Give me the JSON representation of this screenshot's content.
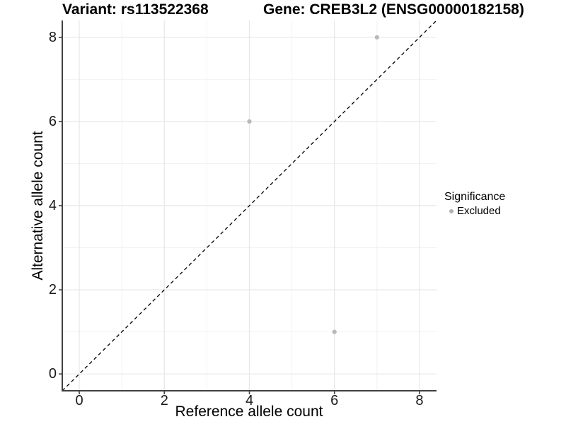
{
  "chart_data": {
    "type": "scatter",
    "title_left": "Variant: rs113522368",
    "title_right": "Gene: CREB3L2 (ENSG00000182158)",
    "xlabel": "Reference allele count",
    "ylabel": "Alternative allele count",
    "xlim": [
      -0.4,
      8.4
    ],
    "ylim": [
      -0.4,
      8.4
    ],
    "x_ticks": [
      0,
      2,
      4,
      6,
      8
    ],
    "y_ticks": [
      0,
      2,
      4,
      6,
      8
    ],
    "x_minor_grid": [
      1,
      3,
      5,
      7
    ],
    "y_minor_grid": [
      1,
      3,
      5,
      7
    ],
    "grid": true,
    "legend_position": "right",
    "identity_line": {
      "from_xy": [
        -0.4,
        -0.4
      ],
      "to_xy": [
        8.4,
        8.4
      ],
      "style": "dashed",
      "color": "#000000"
    },
    "series": [
      {
        "name": "Excluded",
        "color": "#b8b8b8",
        "points": [
          [
            7,
            8
          ],
          [
            4,
            6
          ],
          [
            6,
            1
          ]
        ]
      }
    ],
    "legend": {
      "title": "Significance",
      "entries": [
        {
          "label": "Excluded",
          "color": "#b0b0b0"
        }
      ]
    }
  },
  "colors": {
    "background": "#ffffff",
    "grid_major": "#e7e7e7",
    "grid_minor": "#f2f2f2",
    "axis_line": "#404040",
    "tick_text": "#1a1a1a",
    "point_fill": "#b8b8b8"
  }
}
